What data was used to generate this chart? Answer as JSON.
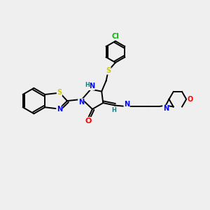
{
  "bg_color": "#efefef",
  "bond_color": "#000000",
  "figsize": [
    3.0,
    3.0
  ],
  "dpi": 100,
  "atom_colors": {
    "N": "#0000ff",
    "S": "#cccc00",
    "O": "#ff0000",
    "Cl": "#00bb00",
    "H": "#008888",
    "C": "#000000"
  },
  "lw": 1.4
}
